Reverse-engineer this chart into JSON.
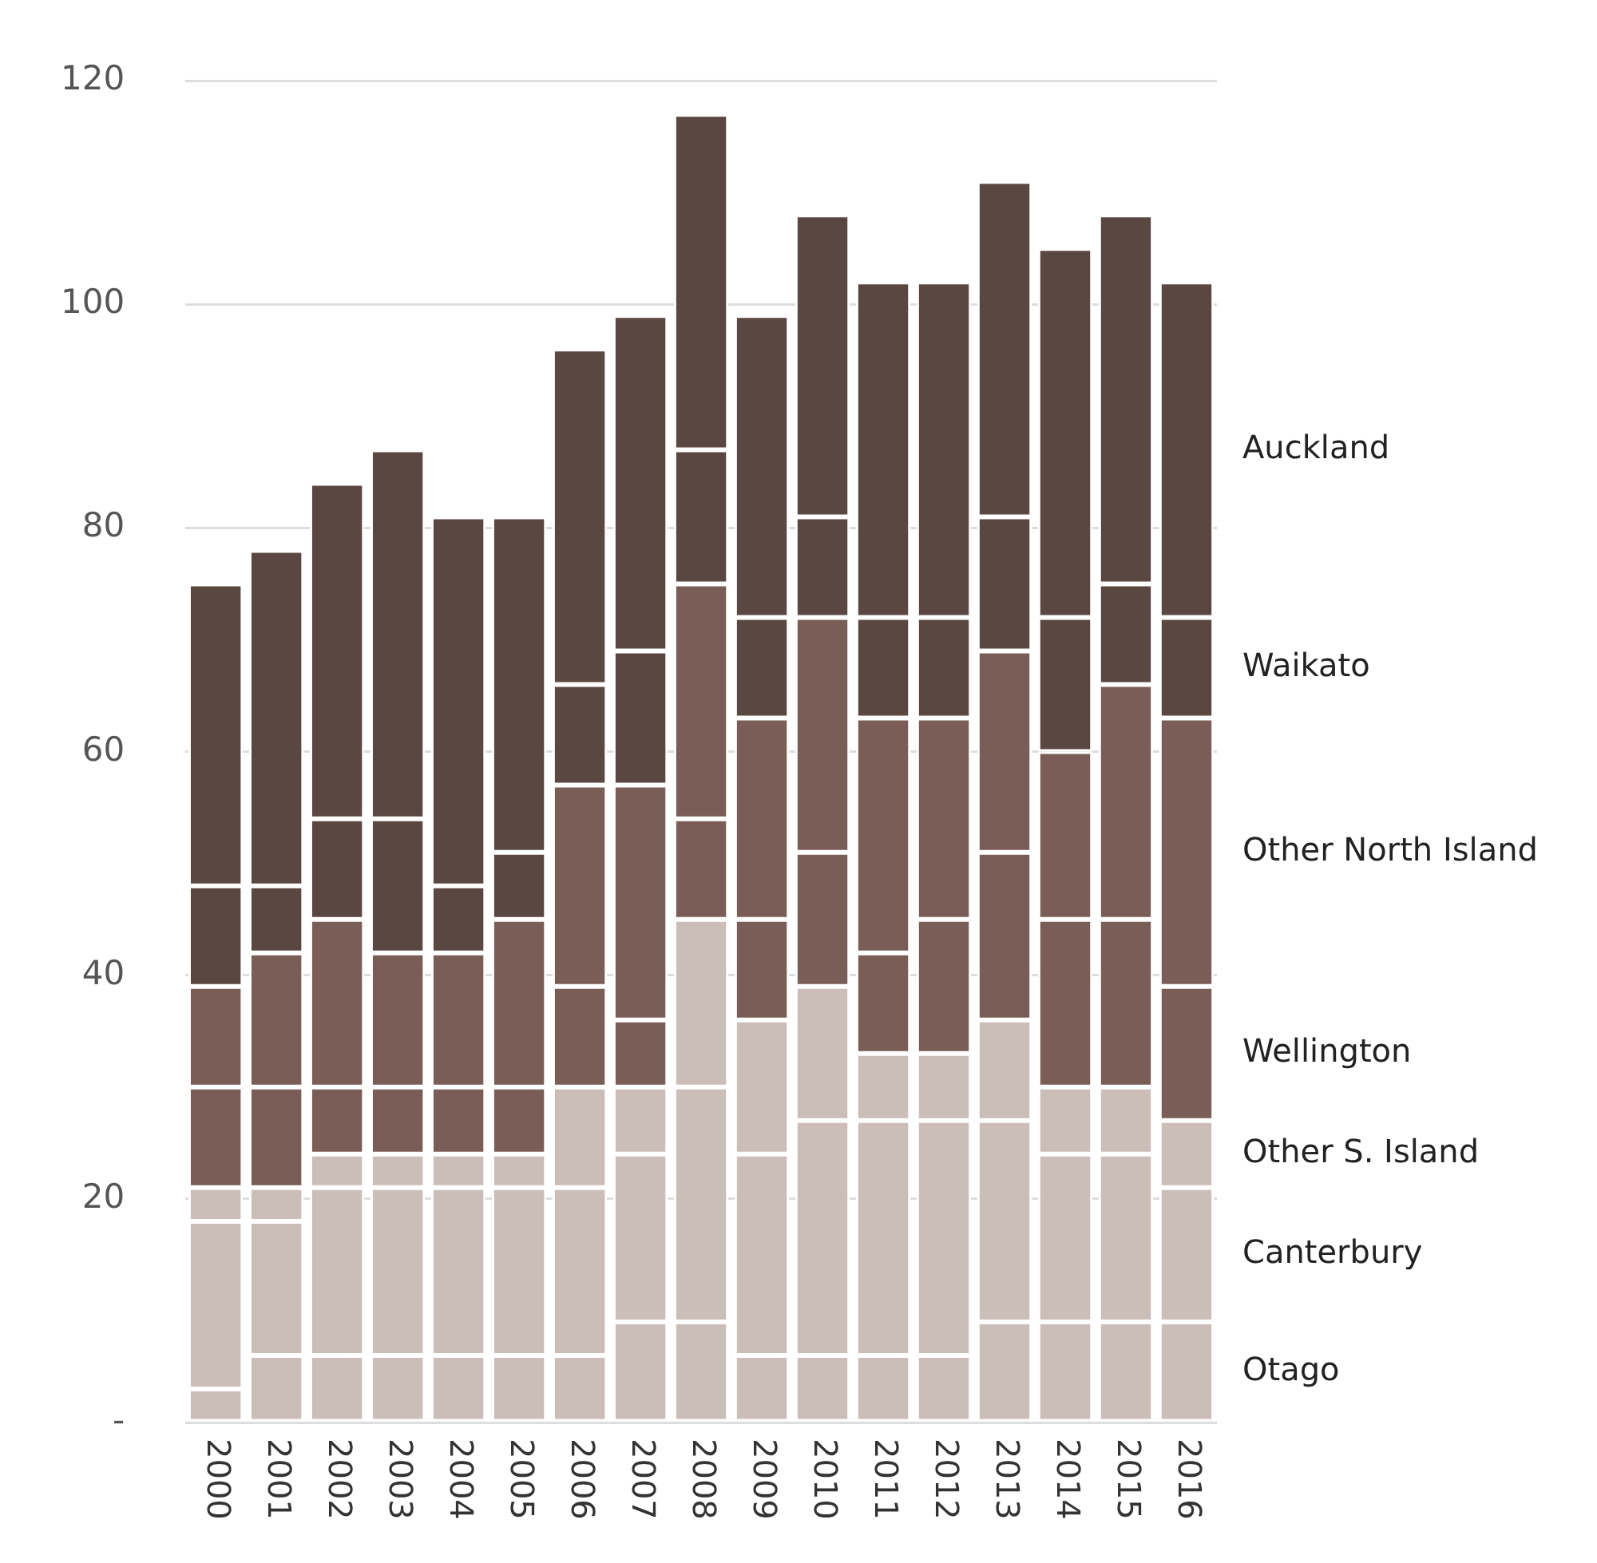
{
  "chart_data": {
    "type": "bar",
    "stacked": true,
    "categories": [
      "2000",
      "2001",
      "2002",
      "2003",
      "2004",
      "2005",
      "2006",
      "2007",
      "2008",
      "2009",
      "2010",
      "2011",
      "2012",
      "2013",
      "2014",
      "2015",
      "2016"
    ],
    "ylim": [
      0,
      120
    ],
    "yticks": [
      {
        "value": 0,
        "label": "-"
      },
      20,
      40,
      60,
      80,
      100,
      120
    ],
    "grid": "y",
    "series": [
      {
        "name": "Otago",
        "color": "#cbbdb8",
        "values": [
          3,
          6,
          6,
          6,
          6,
          6,
          6,
          9,
          9,
          6,
          6,
          6,
          6,
          9,
          9,
          9,
          9
        ]
      },
      {
        "name": "Canterbury",
        "color": "#cbbdb8",
        "values": [
          15,
          12,
          15,
          15,
          15,
          15,
          15,
          15,
          21,
          18,
          21,
          21,
          21,
          18,
          15,
          15,
          12
        ]
      },
      {
        "name": "Other S. Island",
        "color": "#cbbdb8",
        "values": [
          3,
          3,
          3,
          3,
          3,
          3,
          9,
          6,
          15,
          12,
          12,
          6,
          6,
          9,
          6,
          6,
          6
        ]
      },
      {
        "name": "Wellington",
        "color": "#7a5d56",
        "values": [
          9,
          9,
          6,
          6,
          6,
          6,
          9,
          6,
          9,
          9,
          12,
          9,
          12,
          15,
          15,
          15,
          12
        ]
      },
      {
        "name": "Other North Island",
        "color": "#7a5d56",
        "values": [
          9,
          12,
          15,
          12,
          12,
          15,
          18,
          21,
          21,
          18,
          21,
          21,
          18,
          18,
          15,
          21,
          24
        ]
      },
      {
        "name": "Waikato",
        "color": "#5b4741",
        "values": [
          9,
          6,
          9,
          12,
          6,
          6,
          9,
          12,
          12,
          9,
          9,
          9,
          9,
          12,
          12,
          9,
          9
        ]
      },
      {
        "name": "Auckland",
        "color": "#5b4741",
        "values": [
          27,
          30,
          30,
          33,
          33,
          30,
          30,
          30,
          30,
          27,
          27,
          30,
          30,
          30,
          33,
          33,
          30
        ]
      }
    ]
  }
}
